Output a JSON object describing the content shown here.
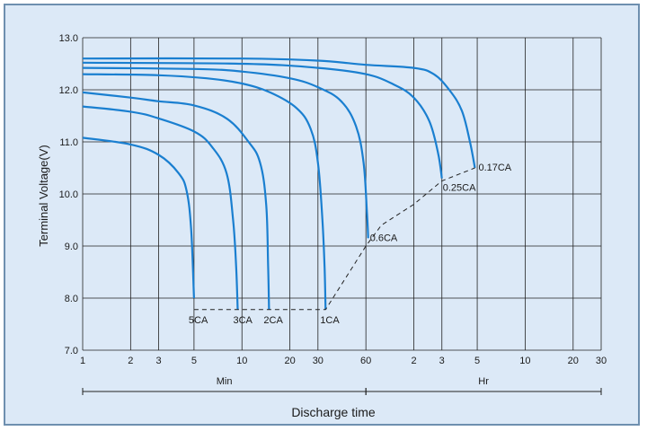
{
  "chart_data": {
    "type": "line",
    "title": "",
    "ylabel": "Terminal Voltage(V)",
    "xlabel": "Discharge time",
    "x_scale": "log",
    "x_unit_note": "x values in minutes",
    "ylim": [
      7.0,
      13.0
    ],
    "y_ticks": [
      "7.0",
      "8.0",
      "9.0",
      "10.0",
      "11.0",
      "12.0",
      "13.0"
    ],
    "x_tick_labels": [
      "1",
      "2",
      "3",
      "5",
      "10",
      "20",
      "30",
      "60",
      "2",
      "3",
      "5",
      "10",
      "20",
      "30"
    ],
    "x_groups": [
      {
        "label": "Min",
        "from": 1,
        "to": 60
      },
      {
        "label": "Hr",
        "from": 60,
        "to": 1800
      }
    ],
    "grid": true,
    "line_color": "#1a7fd0",
    "series": [
      {
        "name": "5CA",
        "points": [
          [
            1,
            11.08
          ],
          [
            2,
            10.95
          ],
          [
            3,
            10.75
          ],
          [
            4,
            10.4
          ],
          [
            4.5,
            10.05
          ],
          [
            4.8,
            9.3
          ],
          [
            5,
            8.0
          ]
        ]
      },
      {
        "name": "3CA",
        "points": [
          [
            1,
            11.68
          ],
          [
            2,
            11.58
          ],
          [
            3,
            11.45
          ],
          [
            5,
            11.2
          ],
          [
            6.5,
            10.9
          ],
          [
            8,
            10.4
          ],
          [
            8.8,
            9.5
          ],
          [
            9.2,
            8.6
          ],
          [
            9.4,
            7.78
          ]
        ]
      },
      {
        "name": "2CA",
        "points": [
          [
            1,
            11.95
          ],
          [
            2,
            11.85
          ],
          [
            3,
            11.78
          ],
          [
            5,
            11.7
          ],
          [
            8,
            11.45
          ],
          [
            11,
            11.0
          ],
          [
            13,
            10.6
          ],
          [
            14.2,
            9.8
          ],
          [
            14.6,
            8.6
          ],
          [
            14.8,
            7.78
          ]
        ]
      },
      {
        "name": "1CA",
        "points": [
          [
            1,
            12.3
          ],
          [
            3,
            12.28
          ],
          [
            6,
            12.22
          ],
          [
            10,
            12.12
          ],
          [
            15,
            11.95
          ],
          [
            22,
            11.65
          ],
          [
            27,
            11.25
          ],
          [
            30,
            10.6
          ],
          [
            32,
            9.5
          ],
          [
            33,
            8.6
          ],
          [
            33.5,
            7.78
          ]
        ]
      },
      {
        "name": "0.6CA",
        "points": [
          [
            1,
            12.42
          ],
          [
            5,
            12.4
          ],
          [
            10,
            12.35
          ],
          [
            20,
            12.22
          ],
          [
            30,
            12.05
          ],
          [
            42,
            11.78
          ],
          [
            52,
            11.3
          ],
          [
            58,
            10.6
          ],
          [
            61,
            9.6
          ],
          [
            62,
            9.15
          ]
        ]
      },
      {
        "name": "0.25CA",
        "points": [
          [
            1,
            12.52
          ],
          [
            10,
            12.5
          ],
          [
            30,
            12.42
          ],
          [
            60,
            12.3
          ],
          [
            90,
            12.1
          ],
          [
            120,
            11.85
          ],
          [
            150,
            11.4
          ],
          [
            170,
            10.8
          ],
          [
            180,
            10.3
          ]
        ]
      },
      {
        "name": "0.17CA",
        "points": [
          [
            1,
            12.6
          ],
          [
            10,
            12.6
          ],
          [
            30,
            12.56
          ],
          [
            60,
            12.48
          ],
          [
            120,
            12.42
          ],
          [
            160,
            12.3
          ],
          [
            200,
            12.0
          ],
          [
            240,
            11.6
          ],
          [
            270,
            11.0
          ],
          [
            290,
            10.5
          ]
        ]
      }
    ],
    "cutoff_line": {
      "style": "dashed",
      "points": [
        [
          5,
          7.78
        ],
        [
          33.5,
          7.78
        ],
        [
          60,
          9.0
        ],
        [
          75,
          9.4
        ],
        [
          120,
          9.8
        ],
        [
          180,
          10.25
        ],
        [
          290,
          10.5
        ]
      ]
    },
    "curve_labels": [
      "5CA",
      "3CA",
      "2CA",
      "1CA",
      "0.6CA",
      "0.25CA",
      "0.17CA"
    ],
    "group_labels": [
      "Min",
      "Hr"
    ]
  }
}
